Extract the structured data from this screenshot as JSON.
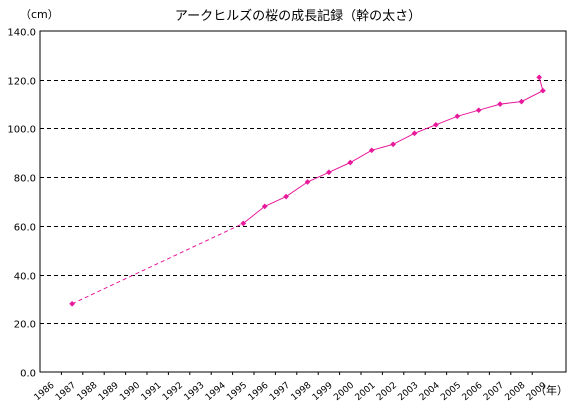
{
  "chart_data": {
    "type": "line",
    "title": "アークヒルズの桜の成長記録（幹の太さ）",
    "ylabel": "（cm）",
    "xlabel": "（年）",
    "ylim": [
      0,
      140
    ],
    "y_ticks": [
      0,
      20,
      40,
      60,
      80,
      100,
      120,
      140
    ],
    "y_tick_labels": [
      "0.0",
      "20.0",
      "40.0",
      "60.0",
      "80.0",
      "100.0",
      "120.0",
      "140.0"
    ],
    "categories": [
      "1986",
      "1987",
      "1988",
      "1989",
      "1990",
      "1991",
      "1992",
      "1993",
      "1994",
      "1995",
      "1996",
      "1997",
      "1998",
      "1999",
      "2000",
      "2001",
      "2002",
      "2003",
      "2004",
      "2005",
      "2006",
      "2007",
      "2008",
      "2009"
    ],
    "grid": {
      "horizontal": true,
      "style": "dashed"
    },
    "series": [
      {
        "style": "dashed",
        "x": [
          "1987",
          "1995"
        ],
        "values": [
          28,
          61
        ]
      },
      {
        "style": "solid",
        "x": [
          "1995",
          "1996",
          "1997",
          "1998",
          "1999",
          "2000",
          "2001",
          "2002",
          "2003",
          "2004",
          "2005",
          "2006",
          "2007",
          "2008",
          "2009"
        ],
        "values": [
          61,
          68,
          72,
          78,
          82,
          86,
          91,
          93.5,
          98,
          101.5,
          105,
          107.5,
          110,
          111,
          115.5
        ]
      }
    ],
    "extra_point": {
      "x_between": [
        "2009",
        "end"
      ],
      "value": 121
    },
    "color": "#e8199b"
  }
}
